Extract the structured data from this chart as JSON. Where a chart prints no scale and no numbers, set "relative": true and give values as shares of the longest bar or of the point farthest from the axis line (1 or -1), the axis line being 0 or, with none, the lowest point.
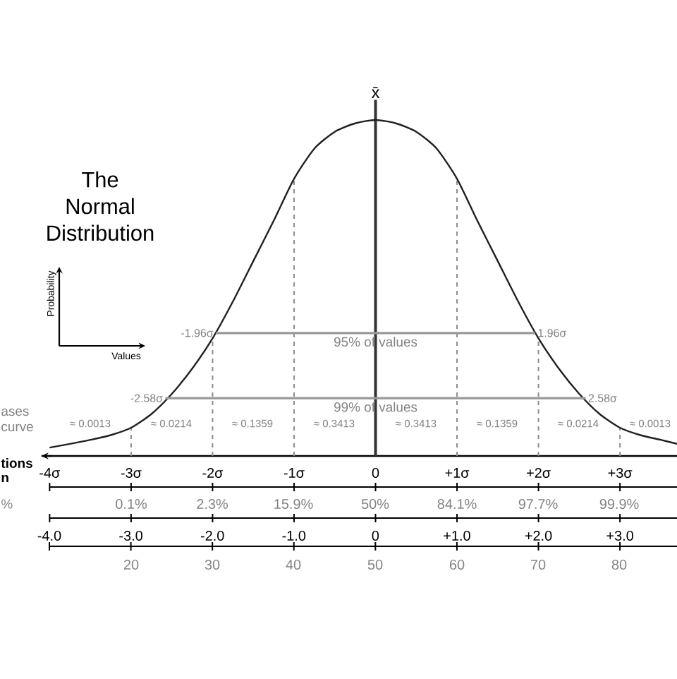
{
  "chart_data": {
    "type": "line",
    "title": "The Normal Distribution",
    "relative": true,
    "series": [
      {
        "color": "#231f20",
        "x": [
          -4,
          -3.75,
          -3.5,
          -3.25,
          -3,
          -2.75,
          -2.5,
          -2.25,
          -2,
          -1.75,
          -1.5,
          -1.25,
          -1,
          -0.75,
          -0.5,
          -0.25,
          0,
          0.25,
          0.5,
          0.75,
          1,
          1.25,
          1.5,
          1.75,
          2,
          2.25,
          2.5,
          2.75,
          3,
          3.25,
          3.5,
          3.7
        ],
        "values": [
          0.025,
          0.036,
          0.048,
          0.062,
          0.084,
          0.125,
          0.185,
          0.26,
          0.35,
          0.46,
          0.58,
          0.7,
          0.825,
          0.915,
          0.965,
          0.99,
          1,
          0.99,
          0.965,
          0.915,
          0.825,
          0.7,
          0.58,
          0.46,
          0.35,
          0.26,
          0.185,
          0.125,
          0.084,
          0.062,
          0.048,
          0.036
        ]
      },
      {
        "name": "95% of values",
        "color": "#999999",
        "x": [
          -1.96,
          1.96
        ],
        "values": [
          0.366,
          0.366
        ]
      },
      {
        "name": "99% of values",
        "color": "#999999",
        "x": [
          -2.58,
          2.58
        ],
        "values": [
          0.172,
          0.172
        ]
      }
    ],
    "xlim": [
      -4.1,
      3.7
    ],
    "xticks": [
      {
        "value": -4,
        "label": "-4σ"
      },
      {
        "value": -3,
        "label": "-3σ"
      },
      {
        "value": -2,
        "label": "-2σ"
      },
      {
        "value": -1,
        "label": "-1σ"
      },
      0,
      {
        "value": 1,
        "label": "+1σ"
      },
      {
        "value": 2,
        "label": "+2σ"
      },
      {
        "value": 3,
        "label": "+3σ"
      }
    ],
    "x2lim": [
      -4,
      3.7
    ],
    "x2ticks": [
      {
        "value": -4,
        "label": "-4.0"
      },
      {
        "value": -3,
        "label": "-3.0"
      },
      {
        "value": -2,
        "label": "-2.0"
      },
      {
        "value": -1,
        "label": "-1.0"
      },
      0,
      {
        "value": 1,
        "label": "+1.0"
      },
      {
        "value": 2,
        "label": "+2.0"
      },
      {
        "value": 3,
        "label": "+3.0"
      }
    ],
    "ref_lines": [
      {
        "axis": "x",
        "value": -3,
        "color": "#8c8c8c",
        "line_style": "dashed"
      },
      {
        "axis": "x",
        "value": -2,
        "color": "#8c8c8c",
        "line_style": "dashed"
      },
      {
        "axis": "x",
        "value": -1,
        "color": "#8c8c8c",
        "line_style": "dashed"
      },
      {
        "axis": "x",
        "value": 0,
        "label": "x̄",
        "color": "#333333",
        "line_style": "solid"
      },
      {
        "axis": "x",
        "value": 1,
        "color": "#8c8c8c",
        "line_style": "dashed"
      },
      {
        "axis": "x",
        "value": 2,
        "color": "#8c8c8c",
        "line_style": "dashed"
      },
      {
        "axis": "x",
        "value": 3,
        "color": "#8c8c8c",
        "line_style": "dashed"
      }
    ],
    "annotations": [
      "Probability",
      "Values",
      "ases",
      "curve",
      "tions",
      "n",
      "%",
      "≈ 0.0013",
      "≈ 0.0214",
      "≈ 0.1359",
      "≈ 0.3413",
      "≈ 0.3413",
      "≈ 0.1359",
      "≈ 0.0214",
      "≈ 0.0013",
      "0.1%",
      "2.3%",
      "15.9%",
      "50%",
      "84.1%",
      "97.7%",
      "99.9%",
      "20",
      "30",
      "40",
      "50",
      "60",
      "70",
      "80",
      {
        "text": "-1.96σ",
        "x": -1.96,
        "y": 0.366
      },
      {
        "text": "1.96σ",
        "x": 1.96,
        "y": 0.366
      },
      {
        "text": "-2.58σ",
        "x": -2.58,
        "y": 0.172
      },
      {
        "text": "2.58σ",
        "x": 2.58,
        "y": 0.172
      }
    ]
  }
}
